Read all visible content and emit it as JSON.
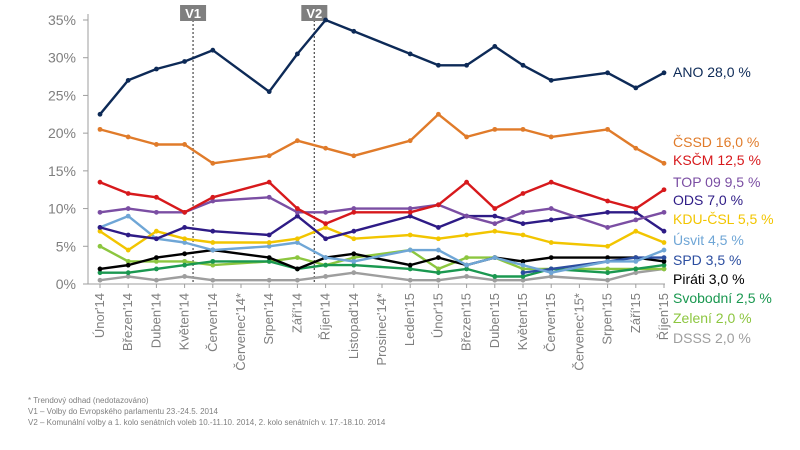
{
  "chart_data": {
    "type": "line",
    "title": "",
    "xlabel": "",
    "ylabel": "",
    "ylim": [
      0,
      35
    ],
    "grid": false,
    "y_ticks": [
      "0%",
      "5%",
      "10%",
      "15%",
      "20%",
      "25%",
      "30%",
      "35%"
    ],
    "y_tick_values": [
      0,
      5,
      10,
      15,
      20,
      25,
      30,
      35
    ],
    "categories": [
      "Únor'14",
      "Březen'14",
      "Duben'14",
      "Květen'14",
      "Červen'14",
      "Červenec'14*",
      "Srpen'14",
      "Září'14",
      "Říjen'14",
      "Listopad'14",
      "Prosinec'14*",
      "Leden'15",
      "Únor'15",
      "Březen'15",
      "Duben'15",
      "Květen'15",
      "Červen'15",
      "Červenec'15*",
      "Srpen'15",
      "Září'15",
      "Říjen'15"
    ],
    "x": [
      0,
      1,
      2,
      3,
      4,
      5,
      6,
      7,
      8,
      9,
      10,
      11,
      12,
      13,
      14,
      15,
      16,
      17,
      18,
      19,
      20
    ],
    "vertical_markers": [
      {
        "label": "V1",
        "x": 3.3
      },
      {
        "label": "V2",
        "x": 7.6
      }
    ],
    "series": [
      {
        "name": "ANO",
        "legend": "ANO 28,0 %",
        "color": "#0d2a57",
        "x": [
          0,
          1,
          2,
          3,
          4,
          6,
          7,
          8,
          9,
          11,
          12,
          13,
          14,
          15,
          16,
          18,
          19,
          20
        ],
        "values": [
          22.5,
          27,
          28.5,
          29.5,
          31,
          25.5,
          30.5,
          35,
          33.5,
          30.5,
          29,
          29,
          31.5,
          29,
          27,
          28,
          26,
          28
        ]
      },
      {
        "name": "ČSSD",
        "legend": "ČSSD 16,0 %",
        "color": "#e07b2a",
        "x": [
          0,
          1,
          2,
          3,
          4,
          6,
          7,
          8,
          9,
          11,
          12,
          13,
          14,
          15,
          16,
          18,
          19,
          20
        ],
        "values": [
          20.5,
          19.5,
          18.5,
          18.5,
          16,
          17,
          19,
          18,
          17,
          19,
          22.5,
          19.5,
          20.5,
          20.5,
          19.5,
          20.5,
          18,
          16
        ]
      },
      {
        "name": "KSČM",
        "legend": "KSČM 12,5 %",
        "color": "#d7191c",
        "x": [
          0,
          1,
          2,
          3,
          4,
          6,
          7,
          8,
          9,
          11,
          12,
          13,
          14,
          15,
          16,
          18,
          19,
          20
        ],
        "values": [
          13.5,
          12,
          11.5,
          9.5,
          11.5,
          13.5,
          10,
          8,
          9.5,
          9.5,
          10.5,
          13.5,
          10,
          12,
          13.5,
          11,
          10,
          12.5
        ]
      },
      {
        "name": "TOP 09",
        "legend": "TOP 09 9,5 %",
        "color": "#7b4ea3",
        "x": [
          0,
          1,
          2,
          3,
          4,
          6,
          7,
          8,
          9,
          11,
          12,
          13,
          14,
          15,
          16,
          18,
          19,
          20
        ],
        "values": [
          9.5,
          10,
          9.5,
          9.5,
          11,
          11.5,
          9.5,
          9.5,
          10,
          10,
          10.5,
          9,
          8,
          9.5,
          10,
          7.5,
          8.5,
          9.5
        ]
      },
      {
        "name": "ODS",
        "legend": "ODS 7,0 %",
        "color": "#2e1b86",
        "x": [
          0,
          1,
          2,
          3,
          4,
          6,
          7,
          8,
          9,
          11,
          12,
          13,
          14,
          15,
          16,
          18,
          19,
          20
        ],
        "values": [
          7.5,
          6.5,
          6,
          7.5,
          7,
          6.5,
          9,
          6,
          7,
          9,
          7.5,
          9,
          9,
          8,
          8.5,
          9.5,
          9.5,
          7
        ]
      },
      {
        "name": "KDU-ČSL",
        "legend": "KDU-ČSL 5,5 %",
        "color": "#f2c500",
        "x": [
          0,
          1,
          2,
          3,
          4,
          6,
          7,
          8,
          9,
          11,
          12,
          13,
          14,
          15,
          16,
          18,
          19,
          20
        ],
        "values": [
          7,
          4.5,
          7,
          6,
          5.5,
          5.5,
          6,
          7.5,
          6,
          6.5,
          6,
          6.5,
          7,
          6.5,
          5.5,
          5,
          7,
          5.5
        ]
      },
      {
        "name": "Úsvit",
        "legend": "Úsvit 4,5 %",
        "color": "#6fa6d6",
        "x": [
          0,
          1,
          2,
          3,
          4,
          6,
          7,
          8,
          9,
          11,
          12,
          13,
          14,
          15,
          16,
          18,
          19,
          20
        ],
        "values": [
          7.5,
          9,
          6,
          5.5,
          4.5,
          5,
          5.5,
          3.5,
          3,
          4.5,
          4.5,
          2.5,
          3.5,
          2.5,
          1.5,
          3,
          3,
          4.5
        ]
      },
      {
        "name": "SPD",
        "legend": "SPD 3,5 %",
        "color": "#2c4ea0",
        "x": [
          15,
          16,
          18,
          19,
          20
        ],
        "values": [
          1.5,
          2,
          3,
          3.5,
          3.5
        ]
      },
      {
        "name": "Piráti",
        "legend": "Piráti 3,0 %",
        "color": "#000000",
        "x": [
          0,
          1,
          2,
          3,
          4,
          6,
          7,
          8,
          9,
          11,
          12,
          13,
          14,
          15,
          16,
          18,
          19,
          20
        ],
        "values": [
          2,
          2.5,
          3.5,
          4,
          4.5,
          3.5,
          2,
          3.5,
          4,
          2.5,
          3.5,
          2.5,
          3.5,
          3,
          3.5,
          3.5,
          3.5,
          3
        ]
      },
      {
        "name": "Svobodní",
        "legend": "Svobodní 2,5 %",
        "color": "#1a9850",
        "x": [
          0,
          1,
          2,
          3,
          4,
          6,
          7,
          8,
          9,
          11,
          12,
          13,
          14,
          15,
          16,
          18,
          19,
          20
        ],
        "values": [
          1.5,
          1.5,
          2,
          2.5,
          3,
          3,
          2,
          2.5,
          2.5,
          2,
          1.5,
          2,
          1,
          1,
          2,
          1.5,
          2,
          2.5
        ]
      },
      {
        "name": "Zelení",
        "legend": "Zelení 2,0 %",
        "color": "#8cc63f",
        "x": [
          0,
          1,
          2,
          3,
          4,
          6,
          7,
          8,
          9,
          11,
          12,
          13,
          14,
          15,
          16,
          18,
          19,
          20
        ],
        "values": [
          5,
          3,
          3,
          3,
          2.5,
          3,
          3.5,
          2.5,
          3.5,
          4.5,
          2,
          3.5,
          3.5,
          2,
          2,
          2,
          2,
          2
        ]
      },
      {
        "name": "DSSS",
        "legend": "DSSS 2,0 %",
        "color": "#9e9e9e",
        "x": [
          0,
          1,
          2,
          3,
          4,
          6,
          7,
          8,
          9,
          11,
          12,
          13,
          14,
          15,
          16,
          18,
          19,
          20
        ],
        "values": [
          0.5,
          1,
          0.5,
          1,
          0.5,
          0.5,
          0.5,
          1,
          1.5,
          0.5,
          0.5,
          1,
          0.5,
          0.5,
          1,
          0.5,
          1.5,
          2
        ]
      }
    ]
  },
  "footnotes": {
    "trend": "* Trendový odhad (nedotazováno)",
    "v1": "V1 – Volby do Evropského parlamentu 23.-24.5. 2014",
    "v2": "V2 – Komunální volby a 1. kolo senátních voleb 10.-11.10. 2014, 2. kolo senátních v. 17.-18.10. 2014"
  }
}
